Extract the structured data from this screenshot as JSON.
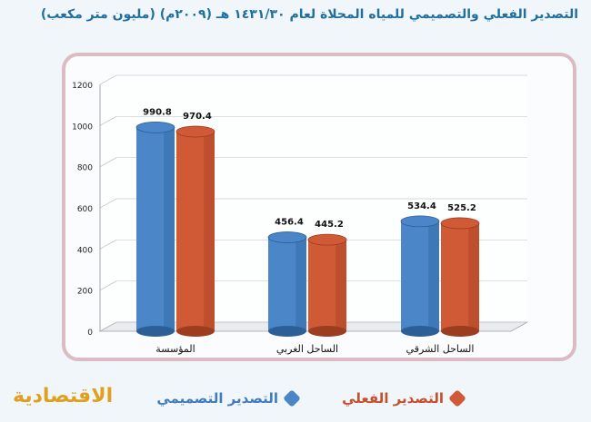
{
  "title": "التصدير الفعلي والتصميمي للمياه المحلاة لعام ١٤٣١/٣٠ هـ (٢٠٠٩م) (مليون متر مكعب)",
  "logo": "الاقتصادية",
  "legend": {
    "actual_label": "التصدير الفعلي",
    "design_label": "التصدير التصميمي"
  },
  "colors": {
    "design": "#4a86c8",
    "actual": "#cf5a35",
    "title": "#1f6fa0",
    "logo": "#e0a01d"
  },
  "chart_data": {
    "type": "bar",
    "categories": [
      "المؤسسة",
      "الساحل الغربي",
      "الساحل الشرقي"
    ],
    "series": [
      {
        "name": "التصدير التصميمي",
        "values": [
          990.8,
          456.4,
          534.4
        ]
      },
      {
        "name": "التصدير الفعلي",
        "values": [
          970.4,
          445.2,
          525.2
        ]
      }
    ],
    "ylim": [
      0,
      1200
    ],
    "yticks": [
      0,
      200,
      400,
      600,
      800,
      1000,
      1200
    ],
    "grid": true,
    "legend_position": "bottom"
  }
}
